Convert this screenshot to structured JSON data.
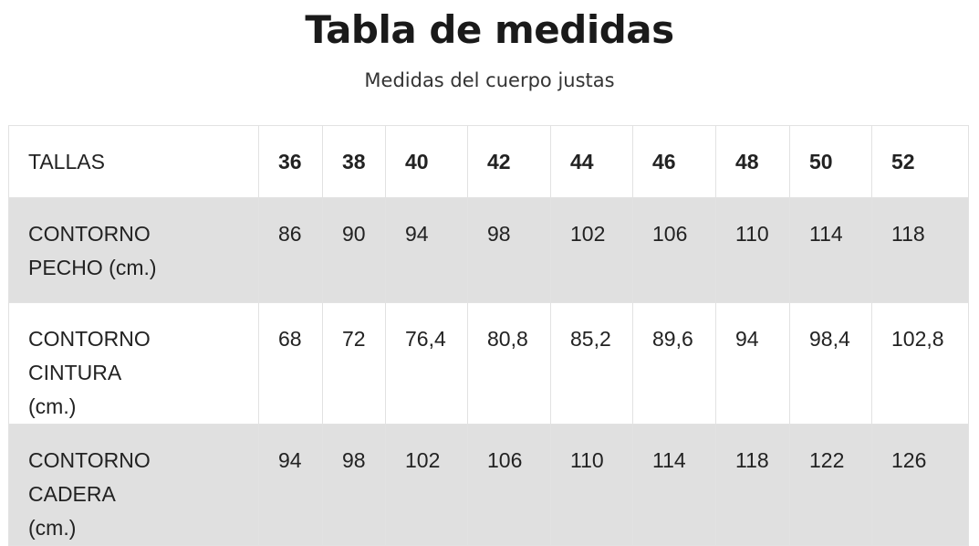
{
  "header": {
    "title": "Tabla de medidas",
    "subtitle": "Medidas del cuerpo justas"
  },
  "table": {
    "header": [
      "TALLAS",
      "36",
      "38",
      "40",
      "42",
      "44",
      "46",
      "48",
      "50",
      "52"
    ],
    "rows": [
      [
        "CONTORNO PECHO (cm.)",
        "86",
        "90",
        "94",
        "98",
        "102",
        "106",
        "110",
        "114",
        "118"
      ],
      [
        "CONTORNO CINTURA (cm.)",
        "68",
        "72",
        "76,4",
        "80,8",
        "85,2",
        "89,6",
        "94",
        "98,4",
        "102,8"
      ],
      [
        "CONTORNO CADERA (cm.)",
        "94",
        "98",
        "102",
        "106",
        "110",
        "114",
        "118",
        "122",
        "126"
      ]
    ]
  }
}
